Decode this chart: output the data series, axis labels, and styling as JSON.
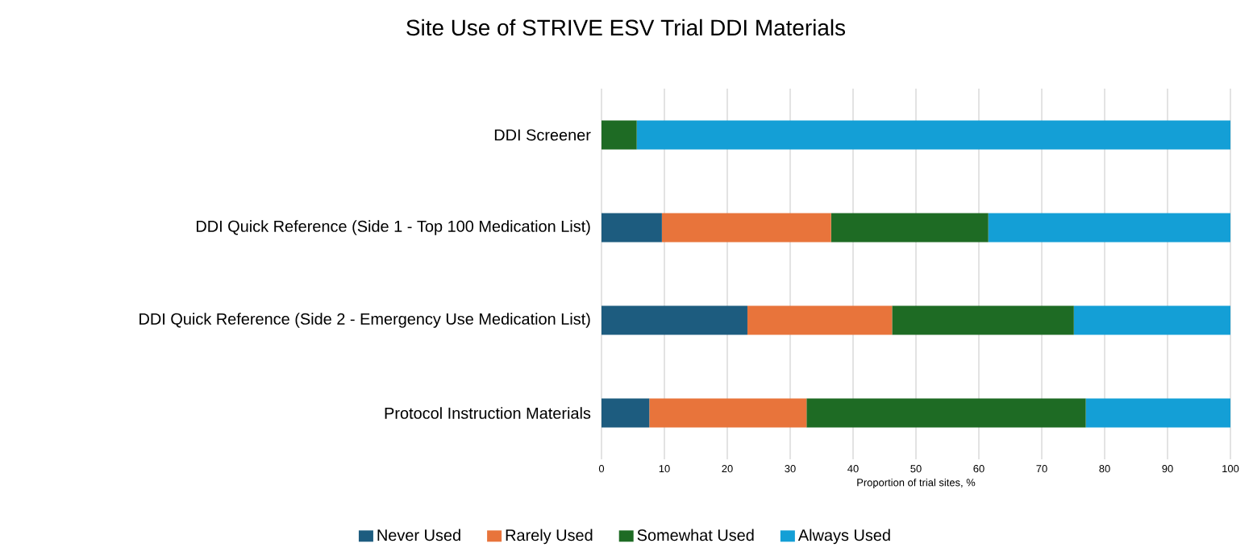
{
  "chart_data": {
    "type": "bar",
    "orientation": "horizontal",
    "stacked": true,
    "title": "Site Use of STRIVE ESV Trial DDI Materials",
    "xlabel": "Proportion of trial sites, %",
    "categories": [
      "DDI Screener",
      "DDI Quick Reference (Side 1 - Top 100 Medication List)",
      "DDI Quick Reference (Side 2 - Emergency Use Medication List)",
      "Protocol Instruction Materials"
    ],
    "series": [
      {
        "name": "Never Used",
        "color": "#1d5c7f",
        "values": [
          0,
          9.6,
          23.2,
          7.6
        ]
      },
      {
        "name": "Rarely Used",
        "color": "#e8743b",
        "values": [
          0,
          26.9,
          23.0,
          25.0
        ]
      },
      {
        "name": "Somewhat Used",
        "color": "#1e6b24",
        "values": [
          5.6,
          25.0,
          28.9,
          44.4
        ]
      },
      {
        "name": "Always Used",
        "color": "#149fd6",
        "values": [
          94.4,
          38.5,
          24.9,
          23.0
        ]
      }
    ],
    "xlim": [
      0,
      100
    ],
    "xticks": [
      0,
      10,
      20,
      30,
      40,
      50,
      60,
      70,
      80,
      90,
      100
    ],
    "grid": "x",
    "legend": "bottom"
  }
}
